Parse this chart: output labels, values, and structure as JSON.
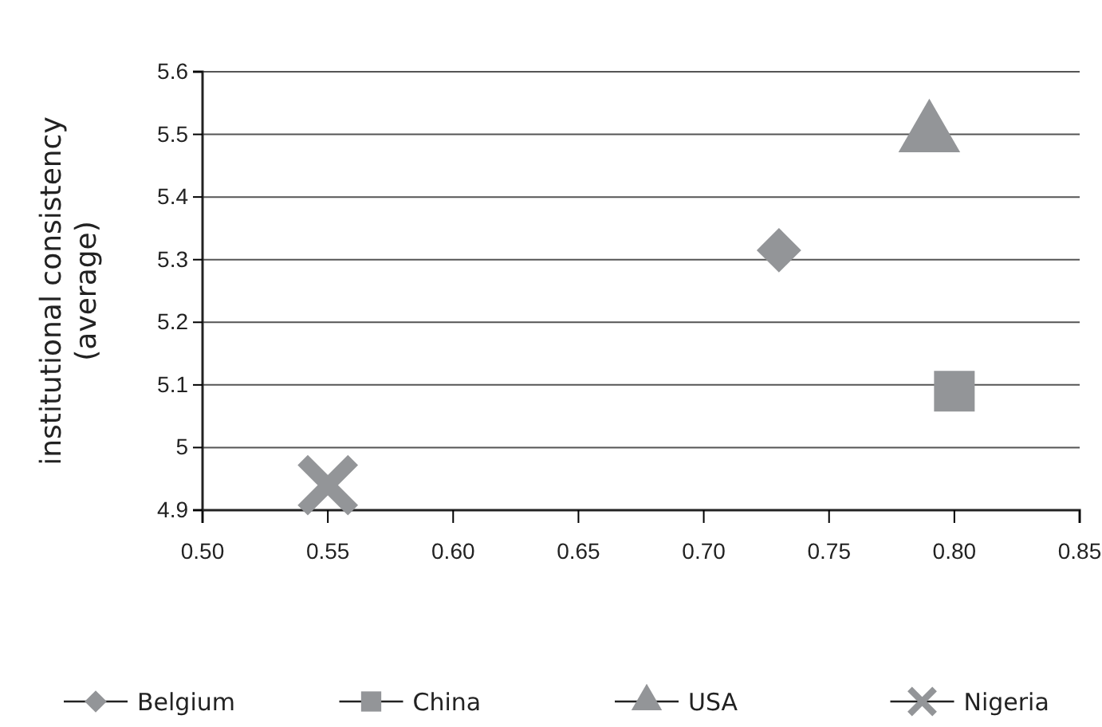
{
  "chart_data": {
    "type": "scatter",
    "ylabel": "institutional consistency (average)",
    "xlim": [
      0.5,
      0.85
    ],
    "xticks": [
      {
        "value": 0.5,
        "label": "0.50"
      },
      {
        "value": 0.55,
        "label": "0.55"
      },
      {
        "value": 0.6,
        "label": "0.60"
      },
      {
        "value": 0.65,
        "label": "0.65"
      },
      {
        "value": 0.7,
        "label": "0.70"
      },
      {
        "value": 0.75,
        "label": "0.75"
      },
      {
        "value": 0.8,
        "label": "0.80"
      },
      {
        "value": 0.85,
        "label": "0.85"
      }
    ],
    "ylim": [
      4.9,
      5.6
    ],
    "yticks": [
      4.9,
      5,
      5.1,
      5.2,
      5.3,
      5.4,
      5.5,
      5.6
    ],
    "grid": "y",
    "legend": "bottom",
    "series": [
      {
        "name": "Belgium",
        "color": "#939598",
        "marker": "diamond",
        "x": [
          0.73
        ],
        "values": [
          5.315
        ]
      },
      {
        "name": "China",
        "color": "#939598",
        "marker": "square",
        "x": [
          0.8
        ],
        "values": [
          5.09
        ]
      },
      {
        "name": "USA",
        "color": "#939598",
        "marker": "triangle",
        "x": [
          0.79
        ],
        "values": [
          5.5
        ]
      },
      {
        "name": "Nigeria",
        "color": "#939598",
        "marker": "cross",
        "x": [
          0.55
        ],
        "values": [
          4.94
        ]
      }
    ]
  }
}
